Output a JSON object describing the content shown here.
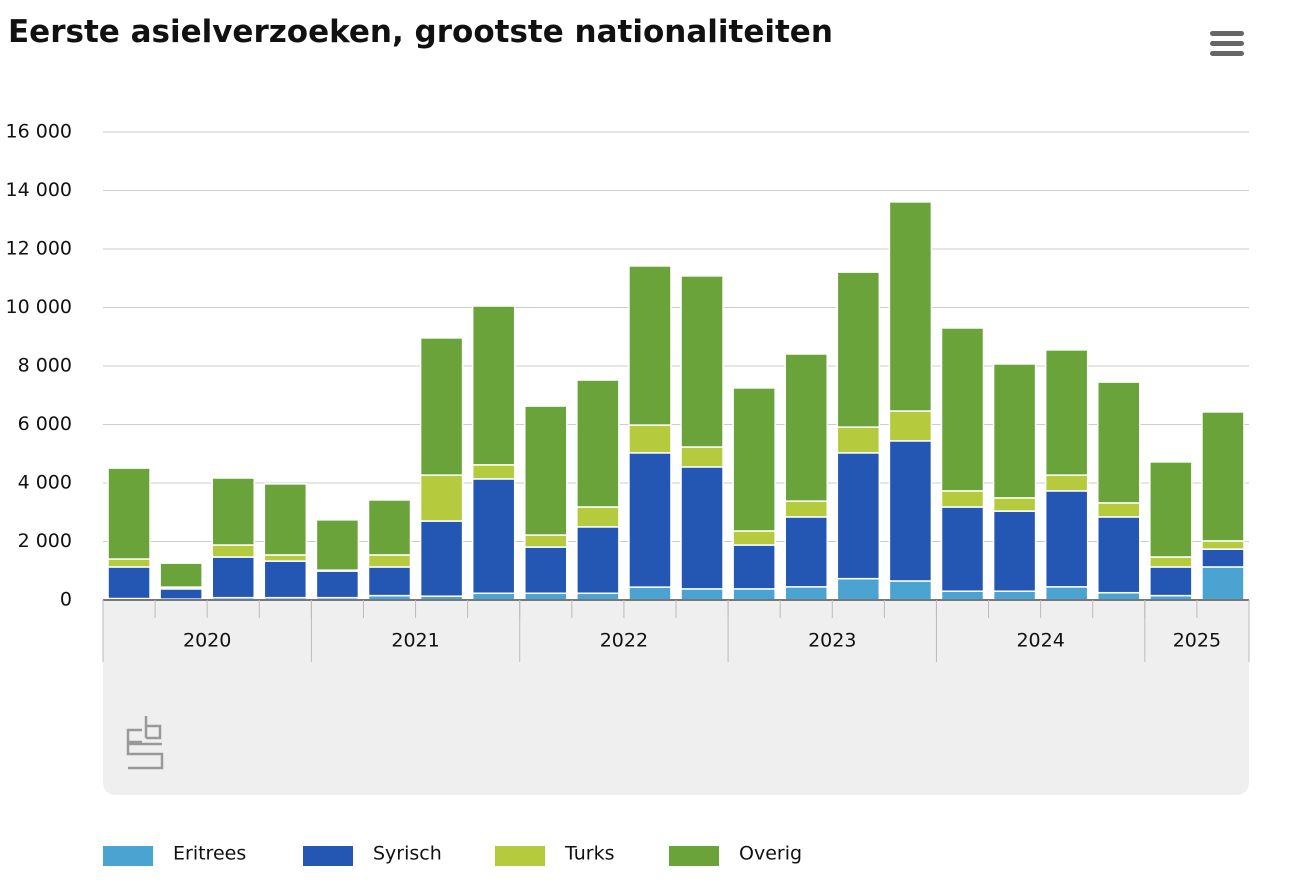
{
  "chart_data": {
    "type": "stacked_bar",
    "title": "Eerste asielverzoeken, grootste nationaliteiten",
    "categories": [
      "2020",
      "2020",
      "2020",
      "2020",
      "2021",
      "2021",
      "2021",
      "2021",
      "2022",
      "2022",
      "2022",
      "2022",
      "2023",
      "2023",
      "2023",
      "2023",
      "2024",
      "2024",
      "2024",
      "2024",
      "2025",
      "2025"
    ],
    "series": [
      {
        "name": "Eritrees",
        "color": "#4aa3d0",
        "values": [
          50,
          30,
          80,
          80,
          80,
          150,
          130,
          230,
          230,
          230,
          440,
          380,
          380,
          450,
          730,
          650,
          300,
          300,
          450,
          250,
          150,
          1130
        ]
      },
      {
        "name": "Syrisch",
        "color": "#2357b3",
        "values": [
          1080,
          350,
          1390,
          1250,
          910,
          980,
          2570,
          3910,
          1580,
          2270,
          4590,
          4170,
          1500,
          2390,
          4300,
          4790,
          2880,
          2740,
          3280,
          2590,
          980,
          610
        ]
      },
      {
        "name": "Turks",
        "color": "#b5ca3c",
        "values": [
          270,
          60,
          410,
          210,
          30,
          410,
          1570,
          480,
          410,
          680,
          950,
          680,
          480,
          540,
          880,
          1020,
          550,
          450,
          540,
          480,
          340,
          280
        ]
      },
      {
        "name": "Overig",
        "color": "#6aa33a",
        "values": [
          3110,
          820,
          2290,
          2430,
          1720,
          1880,
          4690,
          5430,
          4410,
          4340,
          5440,
          5850,
          4890,
          5030,
          5300,
          7150,
          5570,
          4580,
          4280,
          4130,
          3250,
          4410
        ]
      }
    ],
    "ylim": [
      0,
      16000
    ],
    "yticks": [
      0,
      {
        "value": 2000,
        "label": "2 000"
      },
      {
        "value": 4000,
        "label": "4 000"
      },
      {
        "value": 6000,
        "label": "6 000"
      },
      {
        "value": 8000,
        "label": "8 000"
      },
      {
        "value": 10000,
        "label": "10 000"
      },
      {
        "value": 12000,
        "label": "12 000"
      },
      {
        "value": 14000,
        "label": "14 000"
      },
      {
        "value": 16000,
        "label": "16 000"
      }
    ],
    "grid": true,
    "legend": "bottom"
  }
}
